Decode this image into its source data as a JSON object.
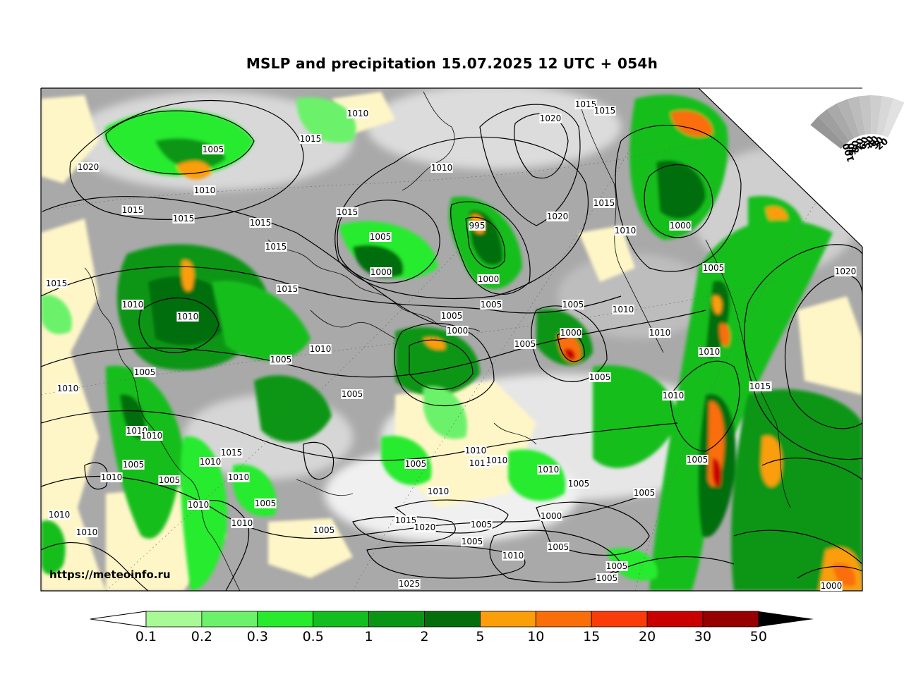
{
  "title": "MSLP and precipitation 15.07.2025 12 UTC + 054h",
  "source_url": "https://meteoinfo.ru",
  "colorbar": {
    "labels": [
      "0.1",
      "0.2",
      "0.3",
      "0.5",
      "1",
      "2",
      "5",
      "10",
      "15",
      "20",
      "30",
      "50"
    ],
    "colors": [
      "#a8fa96",
      "#6cf26a",
      "#28eb2e",
      "#14be1e",
      "#0a9614",
      "#046e0a",
      "#fa9e0a",
      "#fa6e0a",
      "#fa3c0a",
      "#c80000",
      "#960000"
    ]
  },
  "cloud_scale": {
    "labels": [
      "100",
      "90",
      "80",
      "70",
      "60",
      "50",
      "40",
      "30",
      "20"
    ]
  },
  "isobars": [
    {
      "text": "1010"
    },
    {
      "text": "1020"
    },
    {
      "text": "1015"
    },
    {
      "text": "1015"
    },
    {
      "text": "1005"
    },
    {
      "text": "1020"
    },
    {
      "text": "1015"
    },
    {
      "text": "1010"
    },
    {
      "text": "1015"
    },
    {
      "text": "1015"
    },
    {
      "text": "1015"
    },
    {
      "text": "1015"
    },
    {
      "text": "1015"
    },
    {
      "text": "1015"
    },
    {
      "text": "1005"
    },
    {
      "text": "995"
    },
    {
      "text": "1010"
    },
    {
      "text": "1020"
    },
    {
      "text": "1015"
    },
    {
      "text": "1010"
    },
    {
      "text": "1000"
    },
    {
      "text": "1000"
    },
    {
      "text": "1000"
    },
    {
      "text": "1005"
    },
    {
      "text": "1005"
    },
    {
      "text": "1020"
    },
    {
      "text": "1015"
    },
    {
      "text": "1010"
    },
    {
      "text": "1010"
    },
    {
      "text": "1005"
    },
    {
      "text": "1005"
    },
    {
      "text": "1000"
    },
    {
      "text": "1000"
    },
    {
      "text": "1005"
    },
    {
      "text": "1010"
    },
    {
      "text": "1010"
    },
    {
      "text": "1010"
    },
    {
      "text": "1005"
    },
    {
      "text": "1005"
    },
    {
      "text": "1005"
    },
    {
      "text": "1005"
    },
    {
      "text": "1015"
    },
    {
      "text": "1010"
    },
    {
      "text": "1010"
    },
    {
      "text": "1010"
    },
    {
      "text": "1015"
    },
    {
      "text": "1010"
    },
    {
      "text": "1010"
    },
    {
      "text": "1005"
    },
    {
      "text": "1010"
    },
    {
      "text": "1010"
    },
    {
      "text": "1005"
    },
    {
      "text": "1005"
    },
    {
      "text": "1010"
    },
    {
      "text": "1010"
    },
    {
      "text": "1005"
    },
    {
      "text": "1010"
    },
    {
      "text": "1010"
    },
    {
      "text": "1010"
    },
    {
      "text": "1010"
    },
    {
      "text": "1005"
    },
    {
      "text": "1015"
    },
    {
      "text": "1020"
    },
    {
      "text": "1005"
    },
    {
      "text": "1005"
    },
    {
      "text": "1000"
    },
    {
      "text": "1005"
    },
    {
      "text": "1010"
    },
    {
      "text": "1010"
    },
    {
      "text": "1005"
    },
    {
      "text": "1005"
    },
    {
      "text": "1005"
    },
    {
      "text": "1010"
    },
    {
      "text": "1010"
    },
    {
      "text": "1015"
    },
    {
      "text": "1025"
    },
    {
      "text": "1000"
    },
    {
      "text": "1010"
    },
    {
      "text": "1005"
    },
    {
      "text": "1005"
    }
  ]
}
